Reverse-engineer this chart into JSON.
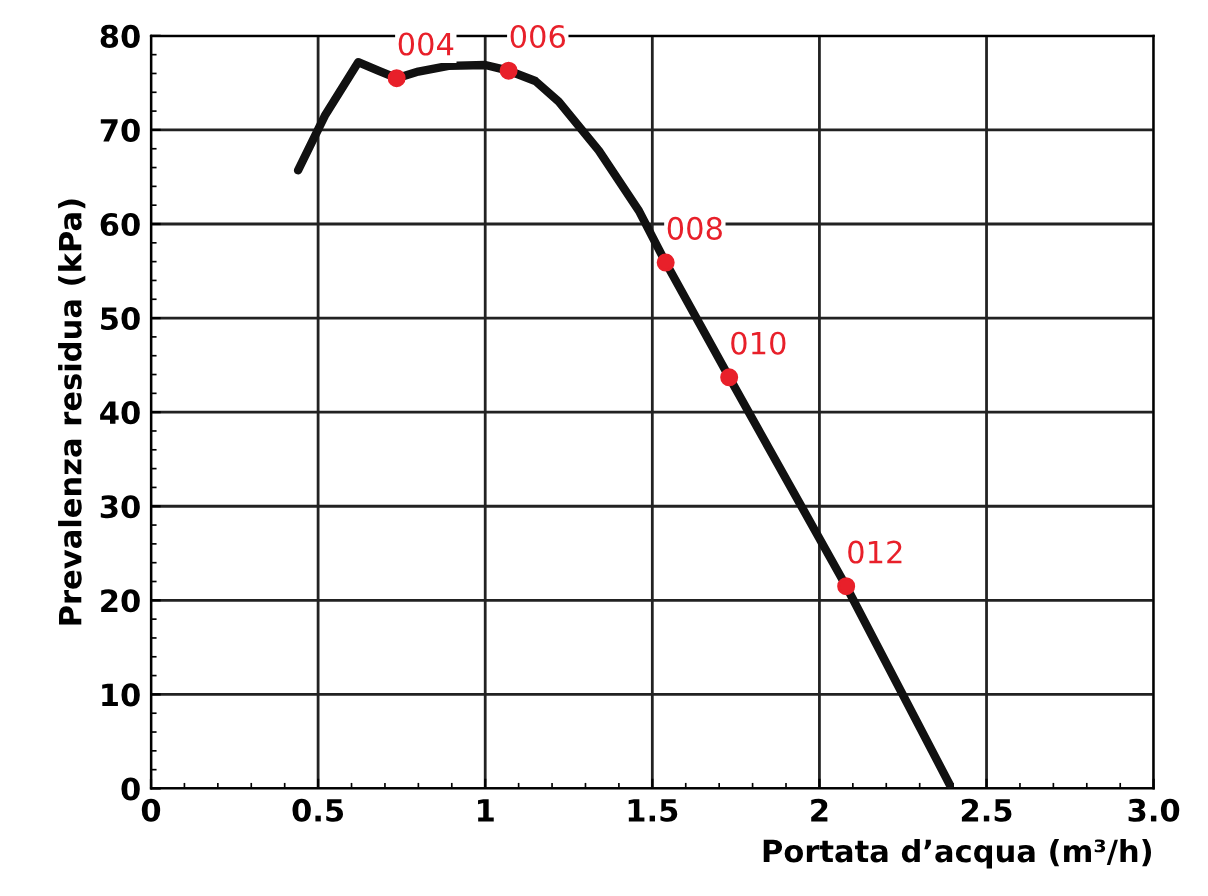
{
  "chart_data": {
    "type": "line",
    "xlabel": "Portata d’acqua (m³/h)",
    "ylabel": "Prevalenza residua (kPa)",
    "xlim": [
      0,
      3.0
    ],
    "ylim": [
      0,
      80
    ],
    "xticks": [
      0,
      0.5,
      1,
      1.5,
      2,
      2.5,
      {
        "value": 3.0,
        "label": "3.0"
      }
    ],
    "yticks": [
      0,
      10,
      20,
      30,
      40,
      50,
      60,
      70,
      80
    ],
    "grid": true,
    "series": [
      {
        "color": "#111111",
        "x": [
          0.44,
          0.52,
          0.62,
          0.68,
          0.735,
          0.8,
          0.89,
          1.0,
          1.07,
          1.15,
          1.22,
          1.34,
          1.46,
          1.54,
          1.73,
          2.08,
          2.39
        ],
        "values": [
          65.7,
          71.5,
          77.2,
          76.3,
          75.5,
          76.2,
          76.8,
          76.9,
          76.3,
          75.2,
          73,
          67.8,
          61.4,
          55.9,
          43.7,
          21.5,
          0.4
        ]
      },
      {
        "type": "scatter",
        "color": "#e8202a",
        "x": [
          0.735,
          1.07,
          1.54,
          1.73,
          2.08
        ],
        "values": [
          75.5,
          76.3,
          55.9,
          43.7,
          21.5
        ]
      }
    ],
    "annotations": [
      {
        "text": "004",
        "x": 0.735,
        "y": 75.5
      },
      {
        "text": "006",
        "x": 1.07,
        "y": 76.3
      },
      {
        "text": "008",
        "x": 1.54,
        "y": 55.9
      },
      {
        "text": "010",
        "x": 1.73,
        "y": 43.7
      },
      {
        "text": "012",
        "x": 2.08,
        "y": 21.5
      }
    ]
  }
}
